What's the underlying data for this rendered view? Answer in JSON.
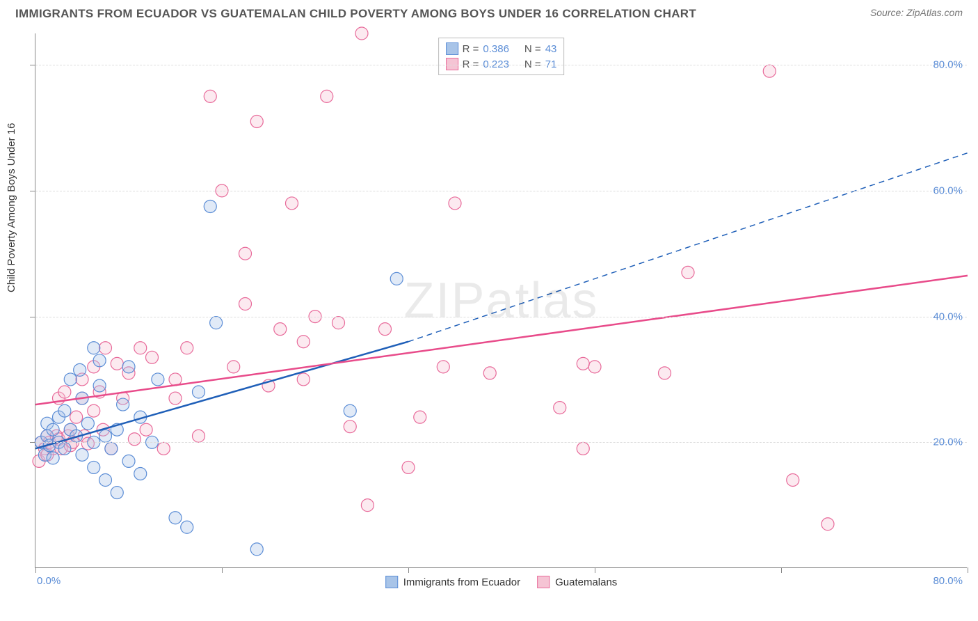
{
  "title": "IMMIGRANTS FROM ECUADOR VS GUATEMALAN CHILD POVERTY AMONG BOYS UNDER 16 CORRELATION CHART",
  "source": "Source: ZipAtlas.com",
  "watermark": "ZIPatlas",
  "ylabel": "Child Poverty Among Boys Under 16",
  "chart": {
    "type": "scatter",
    "xlim": [
      0,
      80
    ],
    "ylim": [
      0,
      85
    ],
    "x_tick_step": 16,
    "y_gridlines": [
      20,
      40,
      60,
      80
    ],
    "x_label_min": "0.0%",
    "x_label_max": "80.0%",
    "y_labels": [
      {
        "v": 20,
        "t": "20.0%"
      },
      {
        "v": 40,
        "t": "40.0%"
      },
      {
        "v": 60,
        "t": "60.0%"
      },
      {
        "v": 80,
        "t": "80.0%"
      }
    ],
    "background_color": "#ffffff",
    "grid_color": "#dddddd",
    "marker_radius": 9,
    "marker_stroke_width": 1.2,
    "marker_fill_opacity": 0.35,
    "series": [
      {
        "name": "Immigrants from Ecuador",
        "R": "0.386",
        "N": "43",
        "color_fill": "#a8c4e8",
        "color_stroke": "#5b8dd6",
        "trend_color": "#1f5fb8",
        "trend_width": 2.5,
        "trend_solid": {
          "x1": 0,
          "y1": 19,
          "x2": 32,
          "y2": 36
        },
        "trend_dash": {
          "x1": 32,
          "y1": 36,
          "x2": 80,
          "y2": 66
        },
        "points": [
          [
            0.5,
            20
          ],
          [
            0.8,
            18
          ],
          [
            1,
            21
          ],
          [
            1,
            23
          ],
          [
            1.2,
            19.5
          ],
          [
            1.5,
            22
          ],
          [
            1.5,
            17.5
          ],
          [
            2,
            24
          ],
          [
            2,
            20
          ],
          [
            2.5,
            19
          ],
          [
            2.5,
            25
          ],
          [
            3,
            22
          ],
          [
            3,
            30
          ],
          [
            3.5,
            21
          ],
          [
            4,
            27
          ],
          [
            4,
            18
          ],
          [
            4.5,
            23
          ],
          [
            5,
            20
          ],
          [
            5,
            16
          ],
          [
            5.5,
            29
          ],
          [
            5.5,
            33
          ],
          [
            6,
            21
          ],
          [
            6,
            14
          ],
          [
            6.5,
            19
          ],
          [
            7,
            22
          ],
          [
            7,
            12
          ],
          [
            7.5,
            26
          ],
          [
            8,
            32
          ],
          [
            8,
            17
          ],
          [
            9,
            24
          ],
          [
            9,
            15
          ],
          [
            10,
            20
          ],
          [
            10.5,
            30
          ],
          [
            12,
            8
          ],
          [
            13,
            6.5
          ],
          [
            14,
            28
          ],
          [
            15,
            57.5
          ],
          [
            15.5,
            39
          ],
          [
            19,
            3
          ],
          [
            27,
            25
          ],
          [
            31,
            46
          ],
          [
            5,
            35
          ],
          [
            3.8,
            31.5
          ]
        ]
      },
      {
        "name": "Guatemalans",
        "R": "0.223",
        "N": "71",
        "color_fill": "#f5c4d4",
        "color_stroke": "#e86a9a",
        "trend_color": "#e84b8a",
        "trend_width": 2.5,
        "trend_solid": {
          "x1": 0,
          "y1": 26,
          "x2": 80,
          "y2": 46.5
        },
        "points": [
          [
            0.3,
            17
          ],
          [
            0.5,
            20
          ],
          [
            0.8,
            19
          ],
          [
            1,
            21
          ],
          [
            1,
            18
          ],
          [
            1.2,
            20
          ],
          [
            1.5,
            19
          ],
          [
            1.8,
            21
          ],
          [
            2,
            27
          ],
          [
            2,
            20.5
          ],
          [
            2.2,
            19
          ],
          [
            2.5,
            28
          ],
          [
            2.8,
            21
          ],
          [
            3,
            22
          ],
          [
            3,
            19.5
          ],
          [
            3.2,
            20
          ],
          [
            3.5,
            24
          ],
          [
            4,
            27
          ],
          [
            4,
            30
          ],
          [
            4.2,
            21
          ],
          [
            4.5,
            19.8
          ],
          [
            5,
            32
          ],
          [
            5,
            25
          ],
          [
            5.5,
            28
          ],
          [
            5.8,
            22
          ],
          [
            6,
            35
          ],
          [
            6.5,
            19
          ],
          [
            7,
            32.5
          ],
          [
            7.5,
            27
          ],
          [
            8,
            31
          ],
          [
            8.5,
            20.5
          ],
          [
            9,
            35
          ],
          [
            9.5,
            22
          ],
          [
            10,
            33.5
          ],
          [
            11,
            19
          ],
          [
            12,
            30
          ],
          [
            13,
            35
          ],
          [
            14,
            21
          ],
          [
            15,
            75
          ],
          [
            16,
            60
          ],
          [
            17,
            32
          ],
          [
            18,
            50
          ],
          [
            19,
            71
          ],
          [
            20,
            29
          ],
          [
            21,
            38
          ],
          [
            22,
            58
          ],
          [
            23,
            36
          ],
          [
            24,
            40
          ],
          [
            25,
            75
          ],
          [
            26,
            39
          ],
          [
            27,
            22.5
          ],
          [
            28,
            85
          ],
          [
            28.5,
            10
          ],
          [
            30,
            38
          ],
          [
            32,
            16
          ],
          [
            33,
            24
          ],
          [
            35,
            32
          ],
          [
            36,
            58
          ],
          [
            39,
            31
          ],
          [
            45,
            25.5
          ],
          [
            47,
            19
          ],
          [
            48,
            32
          ],
          [
            54,
            31
          ],
          [
            56,
            47
          ],
          [
            63,
            79
          ],
          [
            65,
            14
          ],
          [
            68,
            7
          ],
          [
            47,
            32.5
          ],
          [
            12,
            27
          ],
          [
            18,
            42
          ],
          [
            23,
            30
          ]
        ]
      }
    ]
  },
  "legend_top": {
    "R_label": "R =",
    "N_label": "N ="
  },
  "legend_bottom": [
    {
      "label": "Immigrants from Ecuador",
      "fill": "#a8c4e8",
      "stroke": "#5b8dd6"
    },
    {
      "label": "Guatemalans",
      "fill": "#f5c4d4",
      "stroke": "#e86a9a"
    }
  ]
}
